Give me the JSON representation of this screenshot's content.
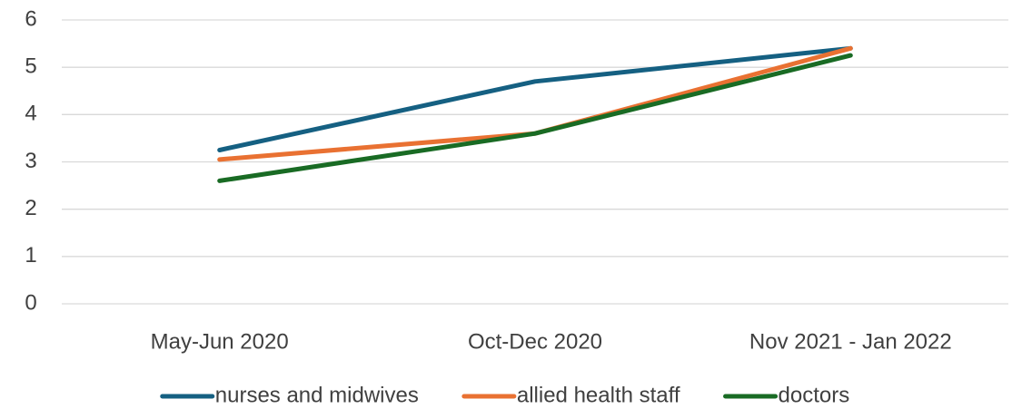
{
  "chart_data": {
    "type": "line",
    "categories": [
      "May-Jun 2020",
      "Oct-Dec 2020",
      "Nov 2021 - Jan 2022"
    ],
    "series": [
      {
        "name": "nurses and midwives",
        "color": "#156082",
        "values": [
          3.25,
          4.7,
          5.4
        ]
      },
      {
        "name": "allied health staff",
        "color": "#e97132",
        "values": [
          3.05,
          3.6,
          5.4
        ]
      },
      {
        "name": "doctors",
        "color": "#196b24",
        "values": [
          2.6,
          3.6,
          5.25
        ]
      }
    ],
    "ylim": [
      0,
      6
    ],
    "yticks": [
      0,
      1,
      2,
      3,
      4,
      5,
      6
    ],
    "grid": true,
    "legend": "bottom"
  }
}
